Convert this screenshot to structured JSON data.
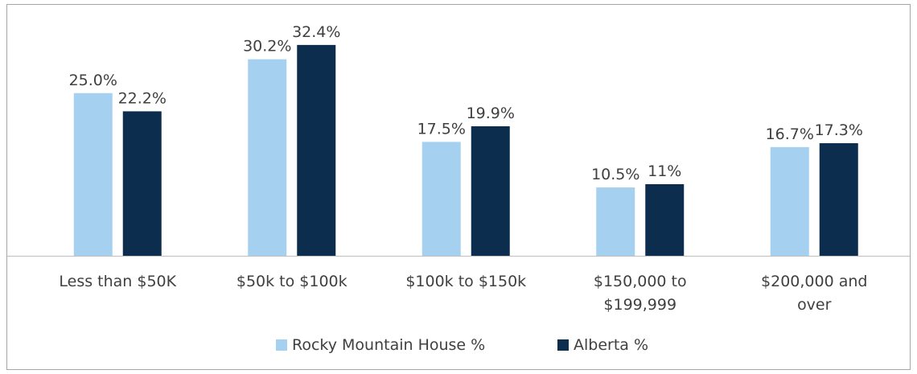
{
  "chart_data": {
    "type": "bar",
    "categories": [
      "Less than $50K",
      "$50k to $100k",
      "$100k to $150k",
      "$150,000 to $199,999",
      "$200,000 and over"
    ],
    "series": [
      {
        "name": "Rocky Mountain House %",
        "color": "#a6d0ef",
        "values": [
          25,
          30.2,
          17.5,
          10.5,
          16.7
        ],
        "value_labels": [
          "25.0%",
          "30.2%",
          "17.5%",
          "10.5%",
          "16.7%"
        ]
      },
      {
        "name": "Alberta %",
        "color": "#0d2d4f",
        "values": [
          22.2,
          32.4,
          19.9,
          11,
          17.3
        ],
        "value_labels": [
          "22.2%",
          "32.4%",
          "19.9%",
          "11%",
          "17.3%"
        ]
      }
    ],
    "legend": "bottom"
  }
}
